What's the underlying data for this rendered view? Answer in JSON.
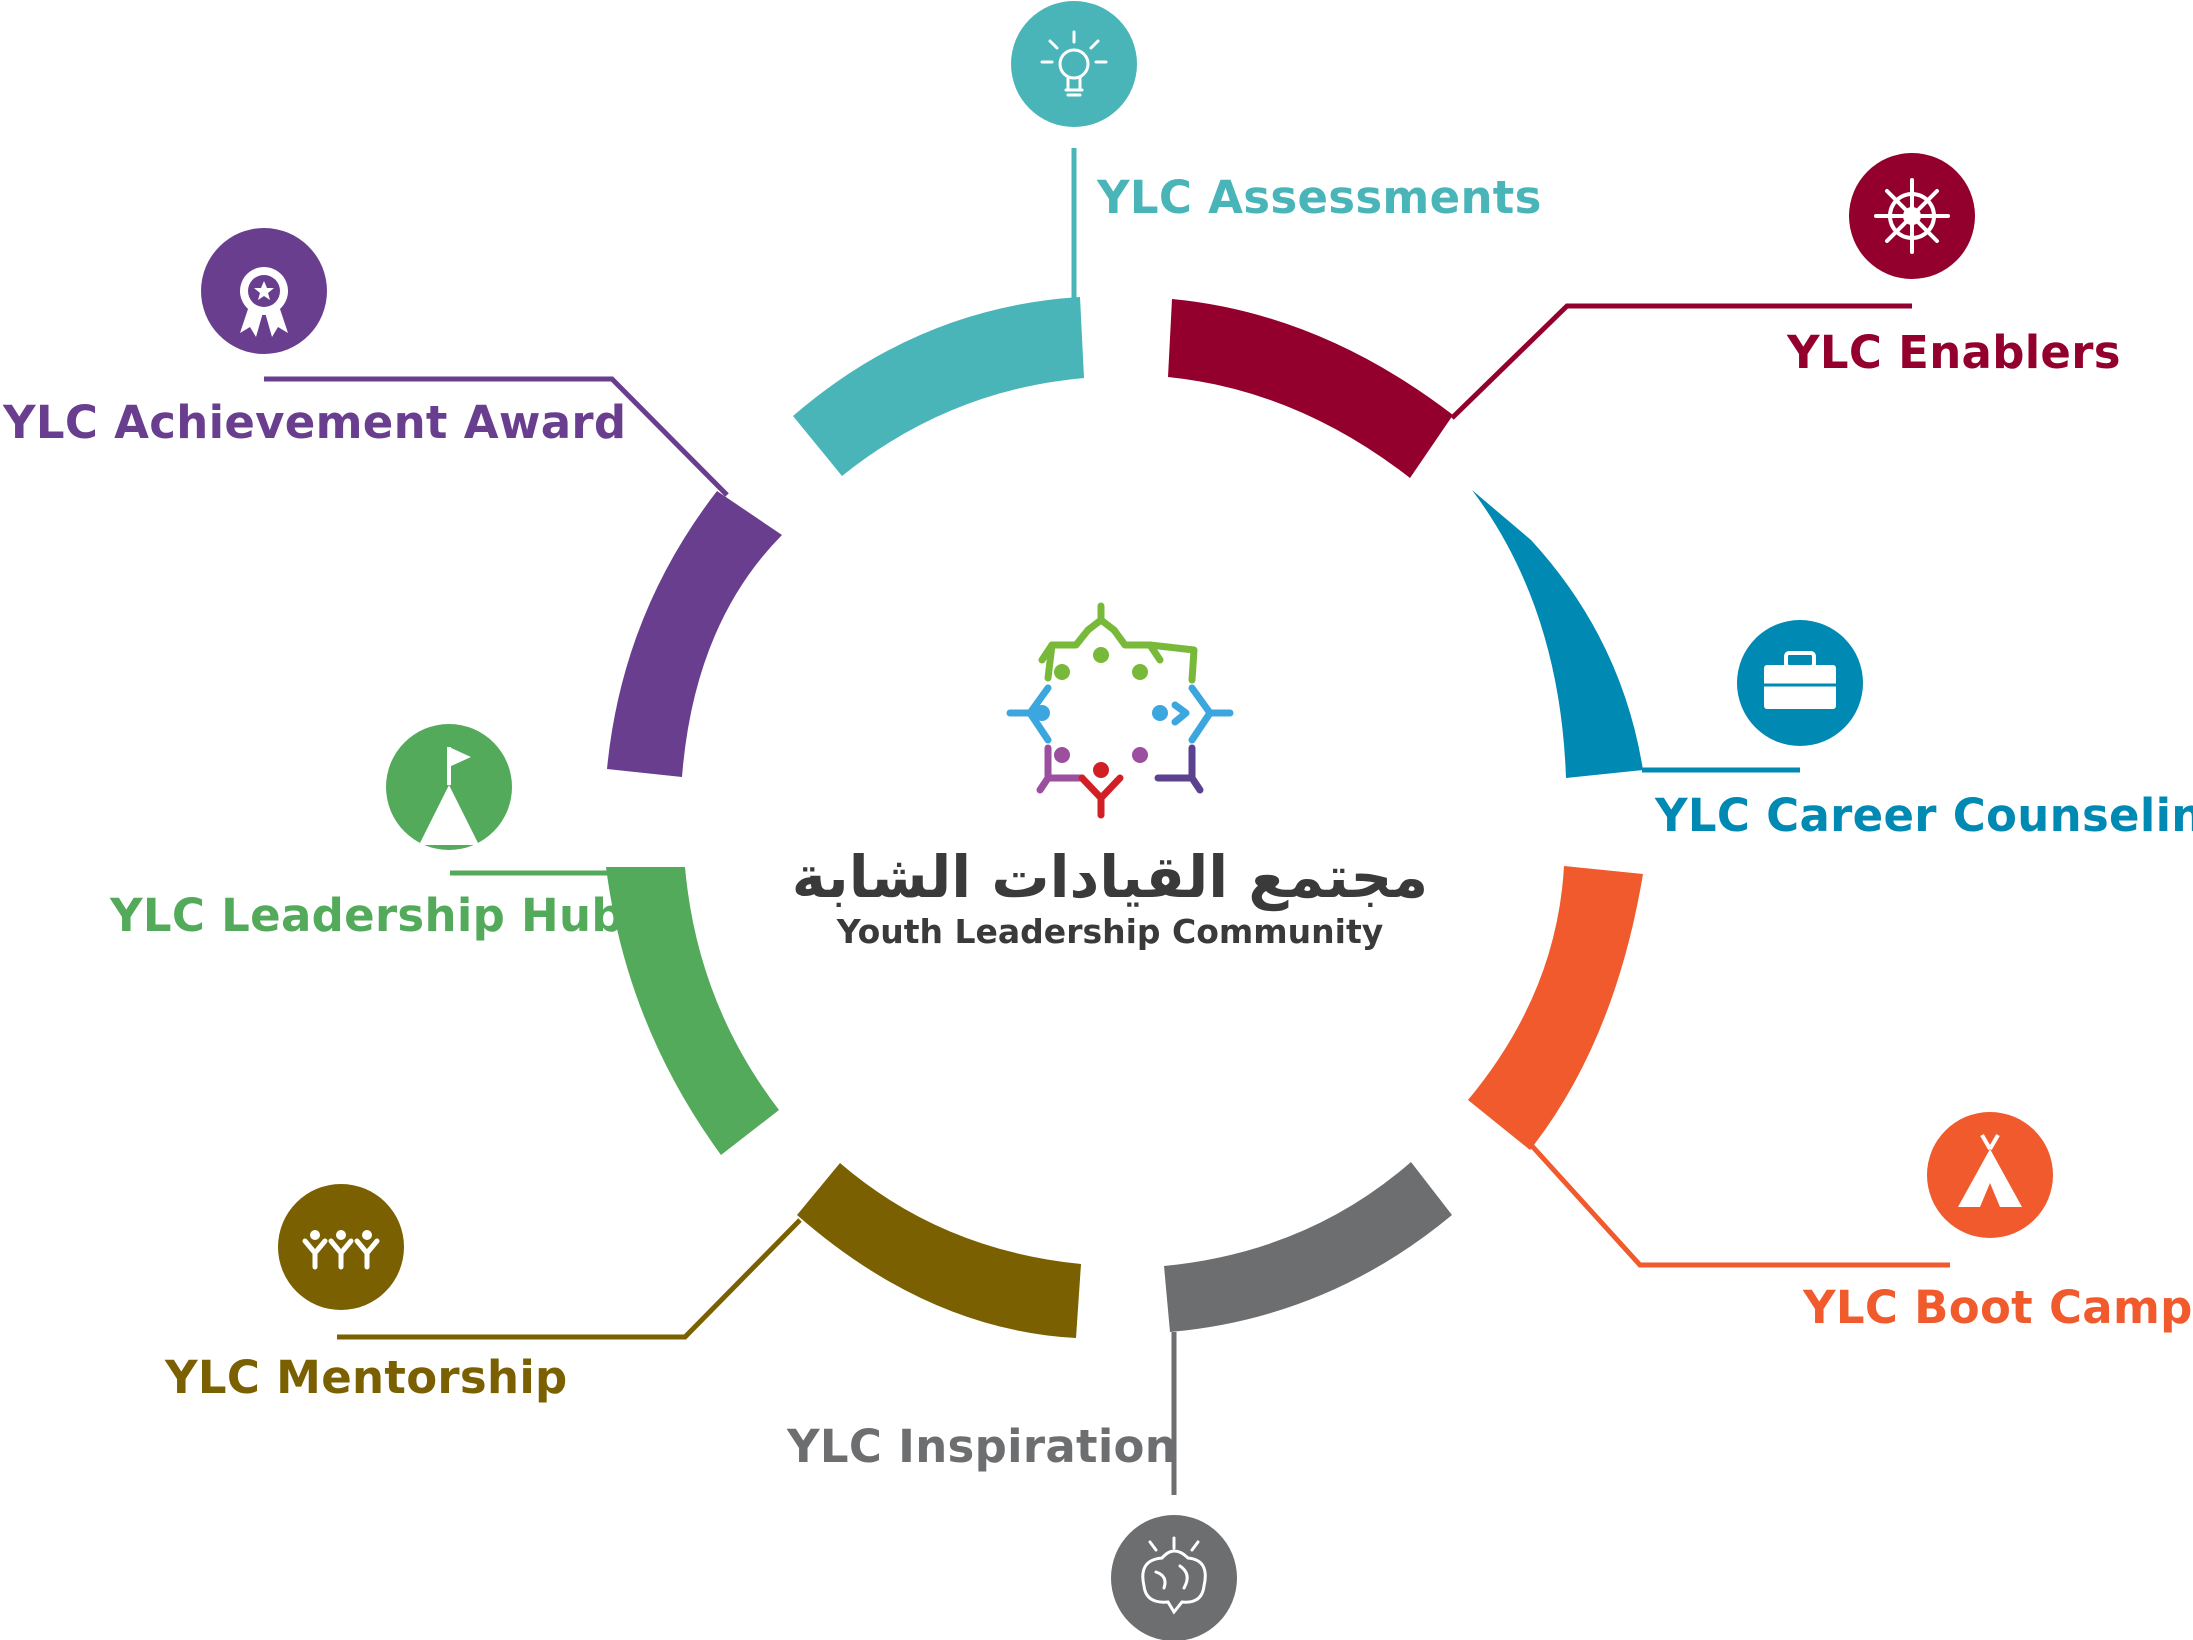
{
  "center": {
    "title_ar": "مجتمع القيادات الشابة",
    "title_en": "Youth Leadership Community"
  },
  "programs": [
    {
      "id": "assessments",
      "label": "YLC Assessments",
      "color": "#49B5B8",
      "icon": "lightbulb-icon"
    },
    {
      "id": "enablers",
      "label": "YLC Enablers",
      "color": "#93002D",
      "icon": "ship-wheel-icon"
    },
    {
      "id": "career",
      "label": "YLC Career Counseling",
      "color": "#0089B3",
      "icon": "briefcase-icon"
    },
    {
      "id": "bootcamp",
      "label": "YLC Boot Camp",
      "color": "#F05A2C",
      "icon": "tent-icon"
    },
    {
      "id": "inspiration",
      "label": "YLC Inspiration",
      "color": "#6D6E70",
      "icon": "brain-icon"
    },
    {
      "id": "mentorship",
      "label": "YLC Mentorship",
      "color": "#7A6001",
      "icon": "people-group-icon"
    },
    {
      "id": "hub",
      "label": "YLC Leadership Hub",
      "color": "#53AA5A",
      "icon": "mountain-flag-icon"
    },
    {
      "id": "award",
      "label": "YLC Achievement Award",
      "color": "#6A3E8E",
      "icon": "award-rosette-icon"
    }
  ]
}
